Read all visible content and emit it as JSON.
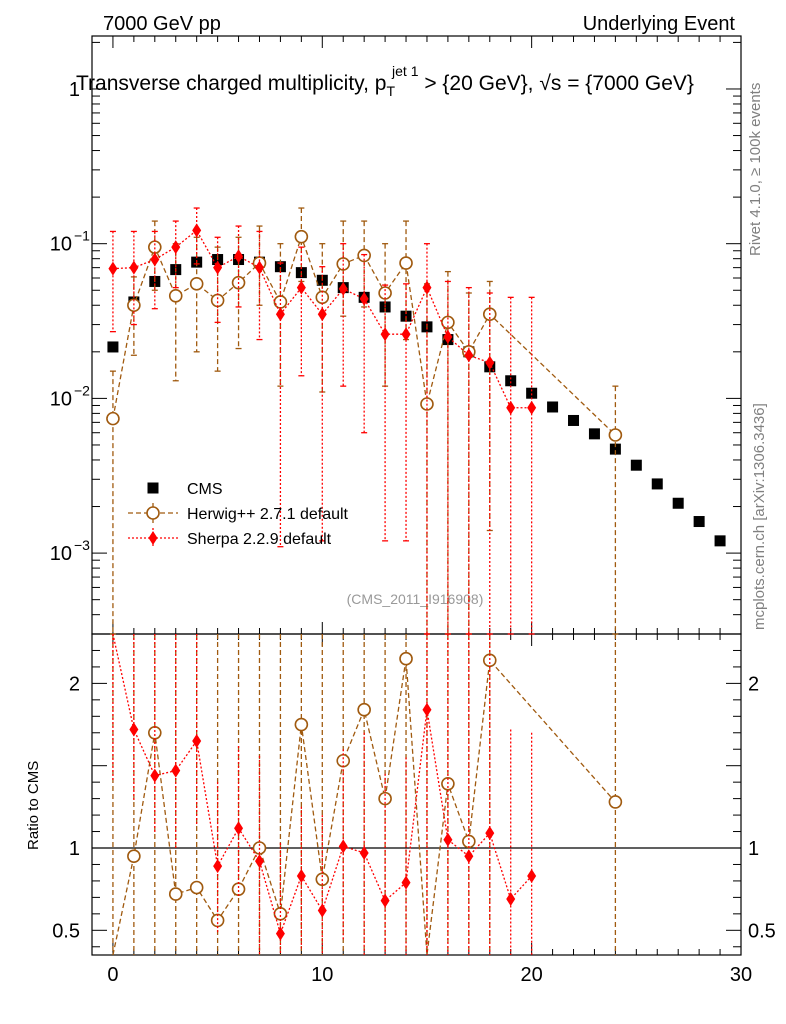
{
  "header": {
    "left": "7000 GeV pp",
    "right": "Underlying Event"
  },
  "side_labels": {
    "rivet": "Rivet 4.1.0, ≥ 100k events",
    "mcplots": "mcplots.cern.ch [arXiv:1306.3436]"
  },
  "chart_data": {
    "type": "scatter",
    "title_parts": {
      "pre": "Transverse charged multiplicity, p",
      "sup": "jet 1",
      "sub": "T",
      "mid": " > {20 GeV}, ",
      "sqrt": "√s",
      "post": " = {7000 GeV}"
    },
    "watermark": "(CMS_2011_I916908)",
    "x_range": [
      -1,
      30
    ],
    "main_y_range": [
      0.0003,
      2.2
    ],
    "main_y_scale": "log",
    "main_ticks": [
      {
        "value": 1,
        "label": "1"
      },
      {
        "value": 0.1,
        "label": "10",
        "exp": "−1"
      },
      {
        "value": 0.01,
        "label": "10",
        "exp": "−2"
      },
      {
        "value": 0.001,
        "label": "10",
        "exp": "−3"
      }
    ],
    "x_ticks": [
      {
        "value": 0,
        "label": "0"
      },
      {
        "value": 10,
        "label": "10"
      },
      {
        "value": 20,
        "label": "20"
      },
      {
        "value": 30,
        "label": "30"
      }
    ],
    "ratio_range": [
      0.35,
      2.3
    ],
    "ratio_ylabel": "Ratio to CMS",
    "ratio_ticks": [
      {
        "value": 0.5,
        "label": "0.5"
      },
      {
        "value": 1,
        "label": "1"
      },
      {
        "value": 2,
        "label": "2"
      }
    ],
    "legend": [
      {
        "key": "cms",
        "label": "CMS"
      },
      {
        "key": "herwig",
        "label": "Herwig++ 2.7.1 default"
      },
      {
        "key": "sherpa",
        "label": "Sherpa 2.2.9 default"
      }
    ],
    "series": [
      {
        "key": "cms",
        "name": "CMS",
        "color": "#000000",
        "marker": "square",
        "x": [
          0,
          1,
          2,
          3,
          4,
          5,
          6,
          7,
          8,
          9,
          10,
          11,
          12,
          13,
          14,
          15,
          16,
          17,
          18,
          19,
          20,
          21,
          22,
          23,
          24,
          25,
          26,
          27,
          28,
          29
        ],
        "y": [
          0.0215,
          0.042,
          0.057,
          0.068,
          0.076,
          0.079,
          0.079,
          0.076,
          0.071,
          0.065,
          0.058,
          0.052,
          0.045,
          0.039,
          0.034,
          0.029,
          0.024,
          0.02,
          0.016,
          0.013,
          0.0108,
          0.0088,
          0.0072,
          0.0059,
          0.0047,
          0.0037,
          0.0028,
          0.0021,
          0.0016,
          0.0012
        ]
      },
      {
        "key": "herwig",
        "name": "Herwig++ 2.7.1 default",
        "color": "#a05a0f",
        "marker": "open-circle",
        "line": "dashed",
        "x": [
          0,
          1,
          2,
          3,
          4,
          5,
          6,
          7,
          8,
          9,
          10,
          11,
          12,
          13,
          14,
          15,
          16,
          17,
          18,
          24
        ],
        "y": [
          0.0074,
          0.04,
          0.095,
          0.046,
          0.055,
          0.043,
          0.056,
          0.075,
          0.042,
          0.111,
          0.045,
          0.074,
          0.084,
          0.048,
          0.075,
          0.0092,
          0.031,
          0.02,
          0.035,
          0.0058
        ],
        "err_hi": [
          0.015,
          0.061,
          0.14,
          0.1,
          0.11,
          0.095,
          0.11,
          0.13,
          0.1,
          0.17,
          0.1,
          0.14,
          0.14,
          0.1,
          0.14,
          0.055,
          0.066,
          0.048,
          0.057,
          0.012
        ],
        "err_lo": [
          0.0003,
          0.019,
          0.05,
          0.013,
          0.02,
          0.015,
          0.021,
          0.04,
          0.012,
          0.057,
          0.011,
          0.034,
          0.039,
          0.012,
          0.024,
          0.0003,
          0.0003,
          0.0003,
          0.0014,
          0.0003
        ],
        "ratio": [
          0.3,
          0.95,
          1.7,
          0.72,
          0.76,
          0.56,
          0.75,
          1.0,
          0.6,
          1.75,
          0.81,
          1.53,
          1.84,
          1.3,
          2.15,
          0.3,
          1.39,
          1.04,
          2.14,
          1.28
        ],
        "ratio_hi": [
          2.3,
          2.3,
          2.3,
          2.3,
          2.3,
          2.3,
          2.3,
          2.3,
          2.3,
          2.3,
          2.3,
          2.3,
          2.3,
          2.3,
          2.3,
          2.3,
          2.3,
          2.3,
          2.3,
          2.3
        ],
        "ratio_lo": [
          0.35,
          0.35,
          0.35,
          0.35,
          0.35,
          0.35,
          0.35,
          0.35,
          0.35,
          0.35,
          0.35,
          0.35,
          0.35,
          0.35,
          0.35,
          0.35,
          0.35,
          0.35,
          0.35,
          0.35
        ]
      },
      {
        "key": "sherpa",
        "name": "Sherpa 2.2.9 default",
        "color": "#ff0000",
        "marker": "diamond",
        "line": "dotted",
        "x": [
          0,
          1,
          2,
          3,
          4,
          5,
          6,
          7,
          8,
          9,
          10,
          11,
          12,
          13,
          14,
          15,
          16,
          17,
          18,
          19,
          20
        ],
        "y": [
          0.069,
          0.07,
          0.079,
          0.095,
          0.122,
          0.07,
          0.083,
          0.07,
          0.035,
          0.052,
          0.035,
          0.051,
          0.044,
          0.026,
          0.026,
          0.052,
          0.025,
          0.019,
          0.017,
          0.0087,
          0.0087
        ],
        "err_hi": [
          0.12,
          0.12,
          0.12,
          0.14,
          0.17,
          0.11,
          0.13,
          0.12,
          0.075,
          0.095,
          0.071,
          0.1,
          0.085,
          0.054,
          0.055,
          0.1,
          0.057,
          0.052,
          0.048,
          0.045,
          0.045
        ],
        "err_lo": [
          0.027,
          0.03,
          0.038,
          0.052,
          0.074,
          0.031,
          0.039,
          0.024,
          0.0011,
          0.014,
          0.0012,
          0.012,
          0.006,
          0.0012,
          0.0012,
          0.0003,
          0.0003,
          0.0003,
          0.0003,
          0.0003,
          0.0003
        ],
        "ratio": [
          2.3,
          1.72,
          1.44,
          1.47,
          1.65,
          0.89,
          1.12,
          0.92,
          0.48,
          0.83,
          0.62,
          1.01,
          0.97,
          0.68,
          0.79,
          1.84,
          1.05,
          0.95,
          1.09,
          0.69,
          0.83
        ],
        "ratio_hi": [
          2.3,
          2.3,
          2.3,
          2.3,
          2.3,
          1.4,
          1.62,
          1.56,
          1.03,
          1.25,
          1.2,
          1.6,
          1.7,
          1.45,
          1.55,
          2.3,
          2.3,
          2.3,
          2.3,
          1.72,
          1.7
        ],
        "ratio_lo": [
          1.4,
          1.28,
          1.09,
          1.0,
          1.14,
          0.48,
          0.7,
          0.35,
          0.35,
          0.39,
          0.35,
          0.44,
          0.35,
          0.35,
          0.35,
          0.35,
          0.35,
          0.35,
          0.35,
          0.35,
          0.35
        ]
      }
    ]
  }
}
